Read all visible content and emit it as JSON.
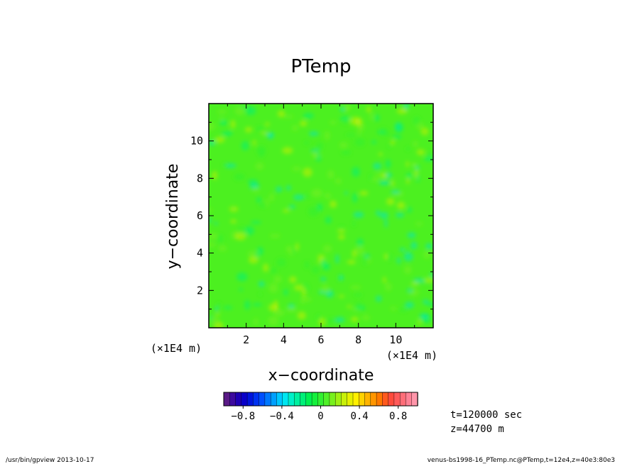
{
  "chart_data": {
    "type": "heatmap",
    "title": "PTemp",
    "xlabel": "x−coordinate",
    "ylabel": "y−coordinate",
    "x_unit_label": "(×1E4 m)",
    "y_unit_label": "(×1E4 m)",
    "xlim": [
      0,
      12
    ],
    "ylim": [
      0,
      12
    ],
    "x_ticks": [
      2,
      4,
      6,
      8,
      10
    ],
    "y_ticks": [
      2,
      4,
      6,
      8,
      10
    ],
    "field_summary": "near-uniform field with values mostly between about -0.3 and 0.3, dominated by green (~0) with scattered cyan and yellow patches",
    "colorbar": {
      "range": [
        -1.0,
        1.0
      ],
      "tick_values": [
        -0.8,
        -0.4,
        0,
        0.4,
        0.8
      ],
      "tick_labels": [
        "−0.8",
        "−0.4",
        "0",
        "0.4",
        "0.8"
      ],
      "colors": [
        "#5a1a86",
        "#3d0a9e",
        "#1f00b4",
        "#0a00c8",
        "#0014dc",
        "#0032f0",
        "#0050ff",
        "#0078ff",
        "#00a0ff",
        "#00c8ff",
        "#00e6f0",
        "#00f0c8",
        "#00f0a0",
        "#00f078",
        "#00f050",
        "#14f03c",
        "#32f032",
        "#50f028",
        "#78f01e",
        "#a0f014",
        "#c8f00a",
        "#e6f000",
        "#fff000",
        "#ffd200",
        "#ffb400",
        "#ff9600",
        "#ff7800",
        "#ff5a1e",
        "#ff4b3c",
        "#ff5a5a",
        "#ff6e78",
        "#ff8296",
        "#ff96aa"
      ]
    }
  },
  "info": {
    "time": "t=120000 sec",
    "height": "z=44700 m"
  },
  "footer": {
    "left": "/usr/bin/gpview   2013-10-17",
    "right": "venus-bs1998-16_PTemp.nc@PTemp,t=12e4,z=40e3:80e3"
  },
  "colors": {
    "field_base": "#4cf020",
    "cyan_patch": "#00e6c8",
    "yellow_patch": "#c8f00a",
    "axis": "#000000"
  }
}
